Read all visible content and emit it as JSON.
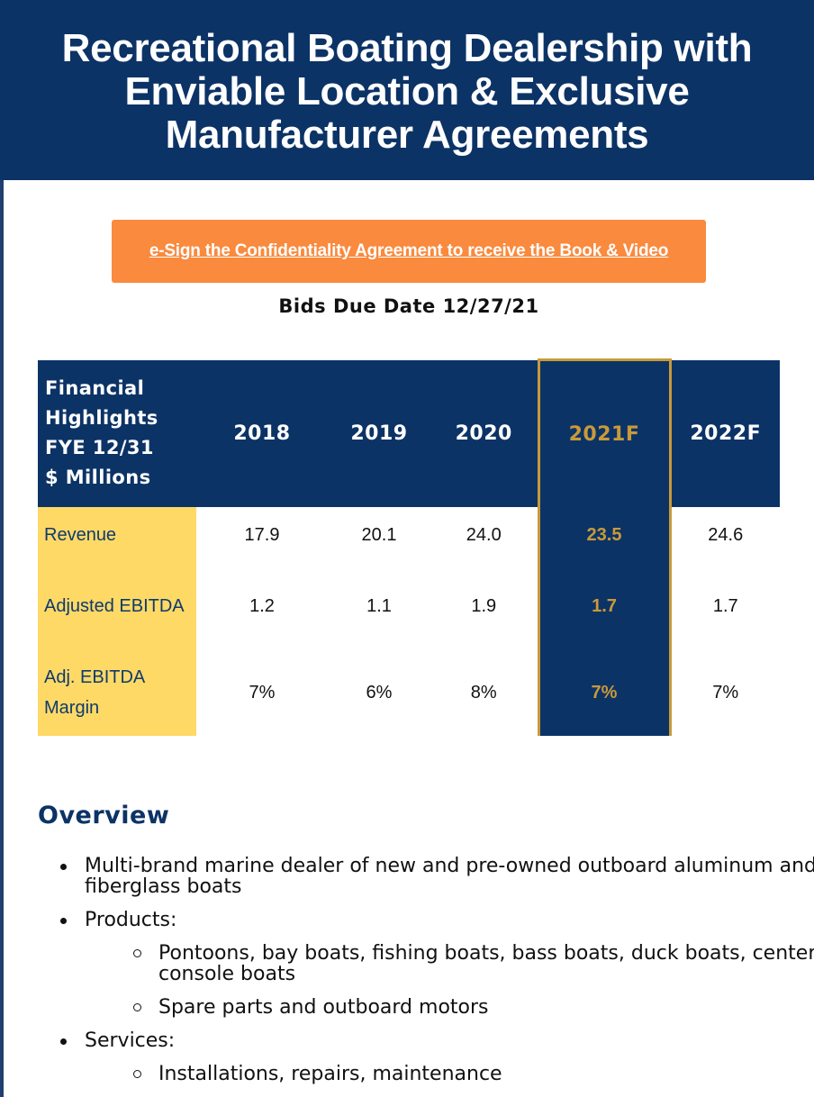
{
  "header": {
    "title": "Recreational Boating Dealership with Enviable Location & Exclusive Manufacturer Agreements"
  },
  "cta": {
    "label": "e-Sign the Confidentiality Agreement to receive the Book & Video"
  },
  "bids_due": "Bids Due Date 12/27/21",
  "financials": {
    "label_lines": [
      "Financial",
      "Highlights",
      "FYE 12/31",
      "$ Millions"
    ],
    "years": [
      "2018",
      "2019",
      "2020",
      "2021F",
      "2022F"
    ],
    "rows": [
      {
        "label": "Revenue",
        "values": [
          "17.9",
          "20.1",
          "24.0",
          "23.5",
          "24.6"
        ]
      },
      {
        "label": "Adjusted EBITDA",
        "values": [
          "1.2",
          "1.1",
          "1.9",
          "1.7",
          "1.7"
        ]
      },
      {
        "label": "Adj. EBITDA Margin",
        "values": [
          "7%",
          "6%",
          "8%",
          "7%",
          "7%"
        ]
      }
    ],
    "highlight_color": "#c89a3a"
  },
  "overview": {
    "heading": "Overview",
    "items": [
      {
        "text": "Multi-brand marine dealer of new and pre-owned outboard aluminum and fiberglass boats",
        "sub": []
      },
      {
        "text": "Products:",
        "sub": [
          "Pontoons, bay boats, fishing boats, bass boats, duck boats, center console boats",
          "Spare parts and outboard motors"
        ]
      },
      {
        "text": "Services:",
        "sub": [
          "Installations, repairs, maintenance"
        ]
      }
    ]
  },
  "colors": {
    "navy": "#0c3366",
    "orange": "#f98a3e",
    "yellow": "#fed966",
    "gold": "#c89a3a"
  }
}
